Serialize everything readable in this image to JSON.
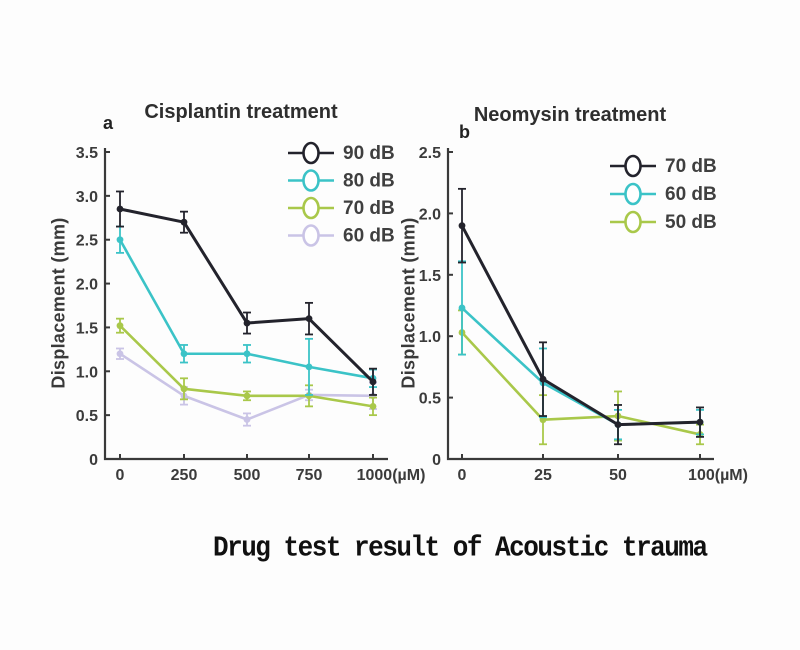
{
  "caption": {
    "text": "Drug test result of Acoustic trauma"
  },
  "chart_data": [
    {
      "type": "line",
      "panel_label": "a",
      "title": "Cisplantin treatment",
      "xlabel": "(µM)",
      "ylabel": "Displacement (mm)",
      "x": [
        0,
        250,
        500,
        750,
        1000
      ],
      "xtick_labels": [
        "0",
        "250",
        "500",
        "750",
        "1000(µM)"
      ],
      "ylim": [
        0,
        3.5
      ],
      "yticks": [
        0,
        0.5,
        1,
        1.5,
        2,
        2.5,
        3,
        3.5
      ],
      "ytick_labels": [
        "0",
        "0.5",
        "1.0",
        "1.5",
        "2.0",
        "2.5",
        "3.0",
        "3.5"
      ],
      "grid": false,
      "legend_position": "top-right",
      "series": [
        {
          "name": "90 dB",
          "color": "#23232c",
          "values": [
            2.85,
            2.7,
            1.55,
            1.6,
            0.88
          ],
          "errors": [
            0.2,
            0.12,
            0.12,
            0.18,
            0.15
          ]
        },
        {
          "name": "80 dB",
          "color": "#3bc3c7",
          "values": [
            2.5,
            1.2,
            1.2,
            1.05,
            0.92
          ],
          "errors": [
            0.15,
            0.1,
            0.1,
            0.32,
            0.1
          ]
        },
        {
          "name": "70 dB",
          "color": "#a9c84a",
          "values": [
            1.52,
            0.8,
            0.72,
            0.72,
            0.6
          ],
          "errors": [
            0.08,
            0.12,
            0.05,
            0.12,
            0.1
          ]
        },
        {
          "name": "60 dB",
          "color": "#cac4e6",
          "values": [
            1.2,
            0.72,
            0.45,
            0.73,
            0.72
          ],
          "errors": [
            0.06,
            0.1,
            0.07,
            0.06,
            0.15
          ]
        }
      ]
    },
    {
      "type": "line",
      "panel_label": "b",
      "title": "Neomysin treatment",
      "xlabel": "(µM)",
      "ylabel": "Displacement (mm)",
      "x": [
        0,
        25,
        50,
        100
      ],
      "xtick_labels": [
        "0",
        "25",
        "50",
        "100(µM)"
      ],
      "ylim": [
        0,
        2.5
      ],
      "yticks": [
        0,
        0.5,
        1,
        1.5,
        2,
        2.5
      ],
      "ytick_labels": [
        "0",
        "0.5",
        "1.0",
        "1.5",
        "2.0",
        "2.5"
      ],
      "grid": false,
      "legend_position": "top-right",
      "series": [
        {
          "name": "70 dB",
          "color": "#23232c",
          "values": [
            1.9,
            0.65,
            0.28,
            0.3
          ],
          "errors": [
            0.3,
            0.3,
            0.16,
            0.12
          ]
        },
        {
          "name": "60 dB",
          "color": "#3bc3c7",
          "values": [
            1.23,
            0.62,
            0.28,
            0.3
          ],
          "errors": [
            0.38,
            0.28,
            0.12,
            0.1
          ]
        },
        {
          "name": "50 dB",
          "color": "#a9c84a",
          "values": [
            1.03,
            0.32,
            0.35,
            0.2
          ],
          "errors": [
            0.18,
            0.2,
            0.2,
            0.08
          ]
        }
      ]
    }
  ]
}
